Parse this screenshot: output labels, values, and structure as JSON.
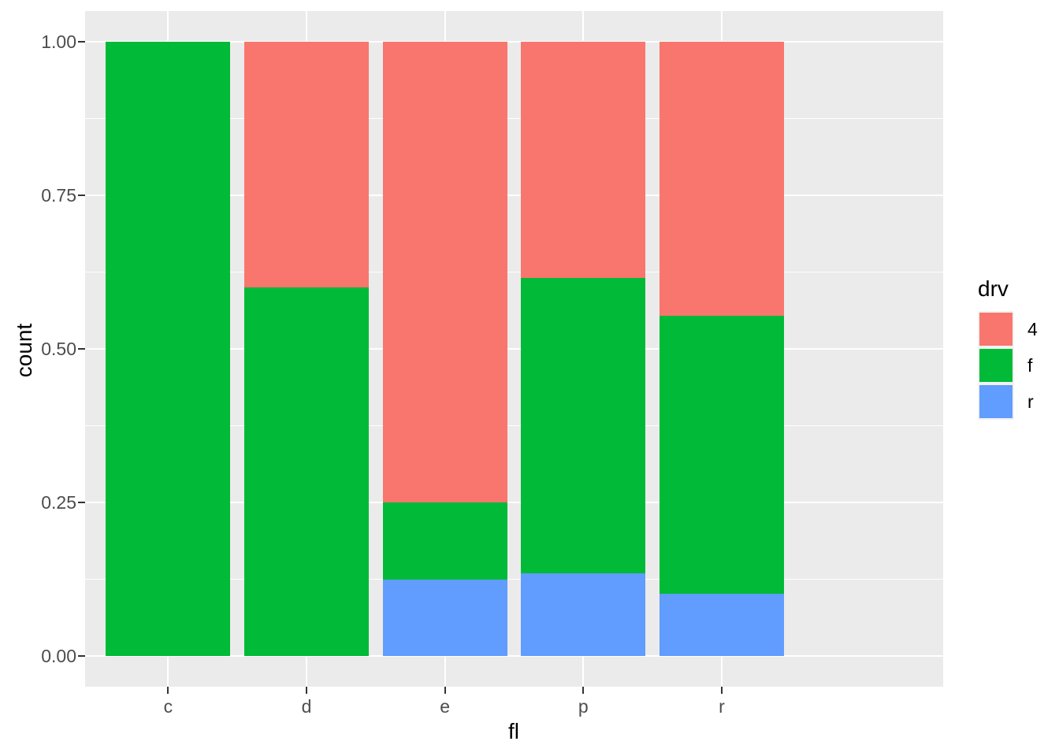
{
  "figure": {
    "background": "#FFFFFF",
    "panel_background": "#EBEBEB",
    "gridline_color": "#FFFFFF",
    "tick_mark_color": "#333333",
    "tick_label_color": "#4D4D4D"
  },
  "legend": {
    "title": "drv",
    "entries": [
      {
        "label": "4",
        "color": "#F8766D"
      },
      {
        "label": "f",
        "color": "#00BA38"
      },
      {
        "label": "r",
        "color": "#619CFF"
      }
    ]
  },
  "chart_data": {
    "type": "bar",
    "subtype": "stacked-fill-proportion",
    "title": "",
    "xlabel": "fl",
    "ylabel": "count",
    "categories": [
      "c",
      "d",
      "e",
      "p",
      "r"
    ],
    "series": [
      {
        "name": "4",
        "color": "#F8766D",
        "values": [
          0,
          0.4,
          0.75,
          0.3846,
          0.4464
        ]
      },
      {
        "name": "f",
        "color": "#00BA38",
        "values": [
          1.0,
          0.6,
          0.125,
          0.4808,
          0.4524
        ]
      },
      {
        "name": "r",
        "color": "#619CFF",
        "values": [
          0,
          0,
          0.125,
          0.1346,
          0.1012
        ]
      }
    ],
    "stack_order_bottom_to_top": [
      "r",
      "f",
      "4"
    ],
    "ylim": [
      0,
      1
    ],
    "y_ticks": [
      {
        "label": "0.00",
        "value": 0.0
      },
      {
        "label": "0.25",
        "value": 0.25
      },
      {
        "label": "0.50",
        "value": 0.5
      },
      {
        "label": "0.75",
        "value": 0.75
      },
      {
        "label": "1.00",
        "value": 1.0
      }
    ],
    "y_minor_breaks": [
      0.125,
      0.375,
      0.625,
      0.875
    ],
    "bar_width_fraction": 0.9,
    "grid": true,
    "legend_position": "right"
  }
}
